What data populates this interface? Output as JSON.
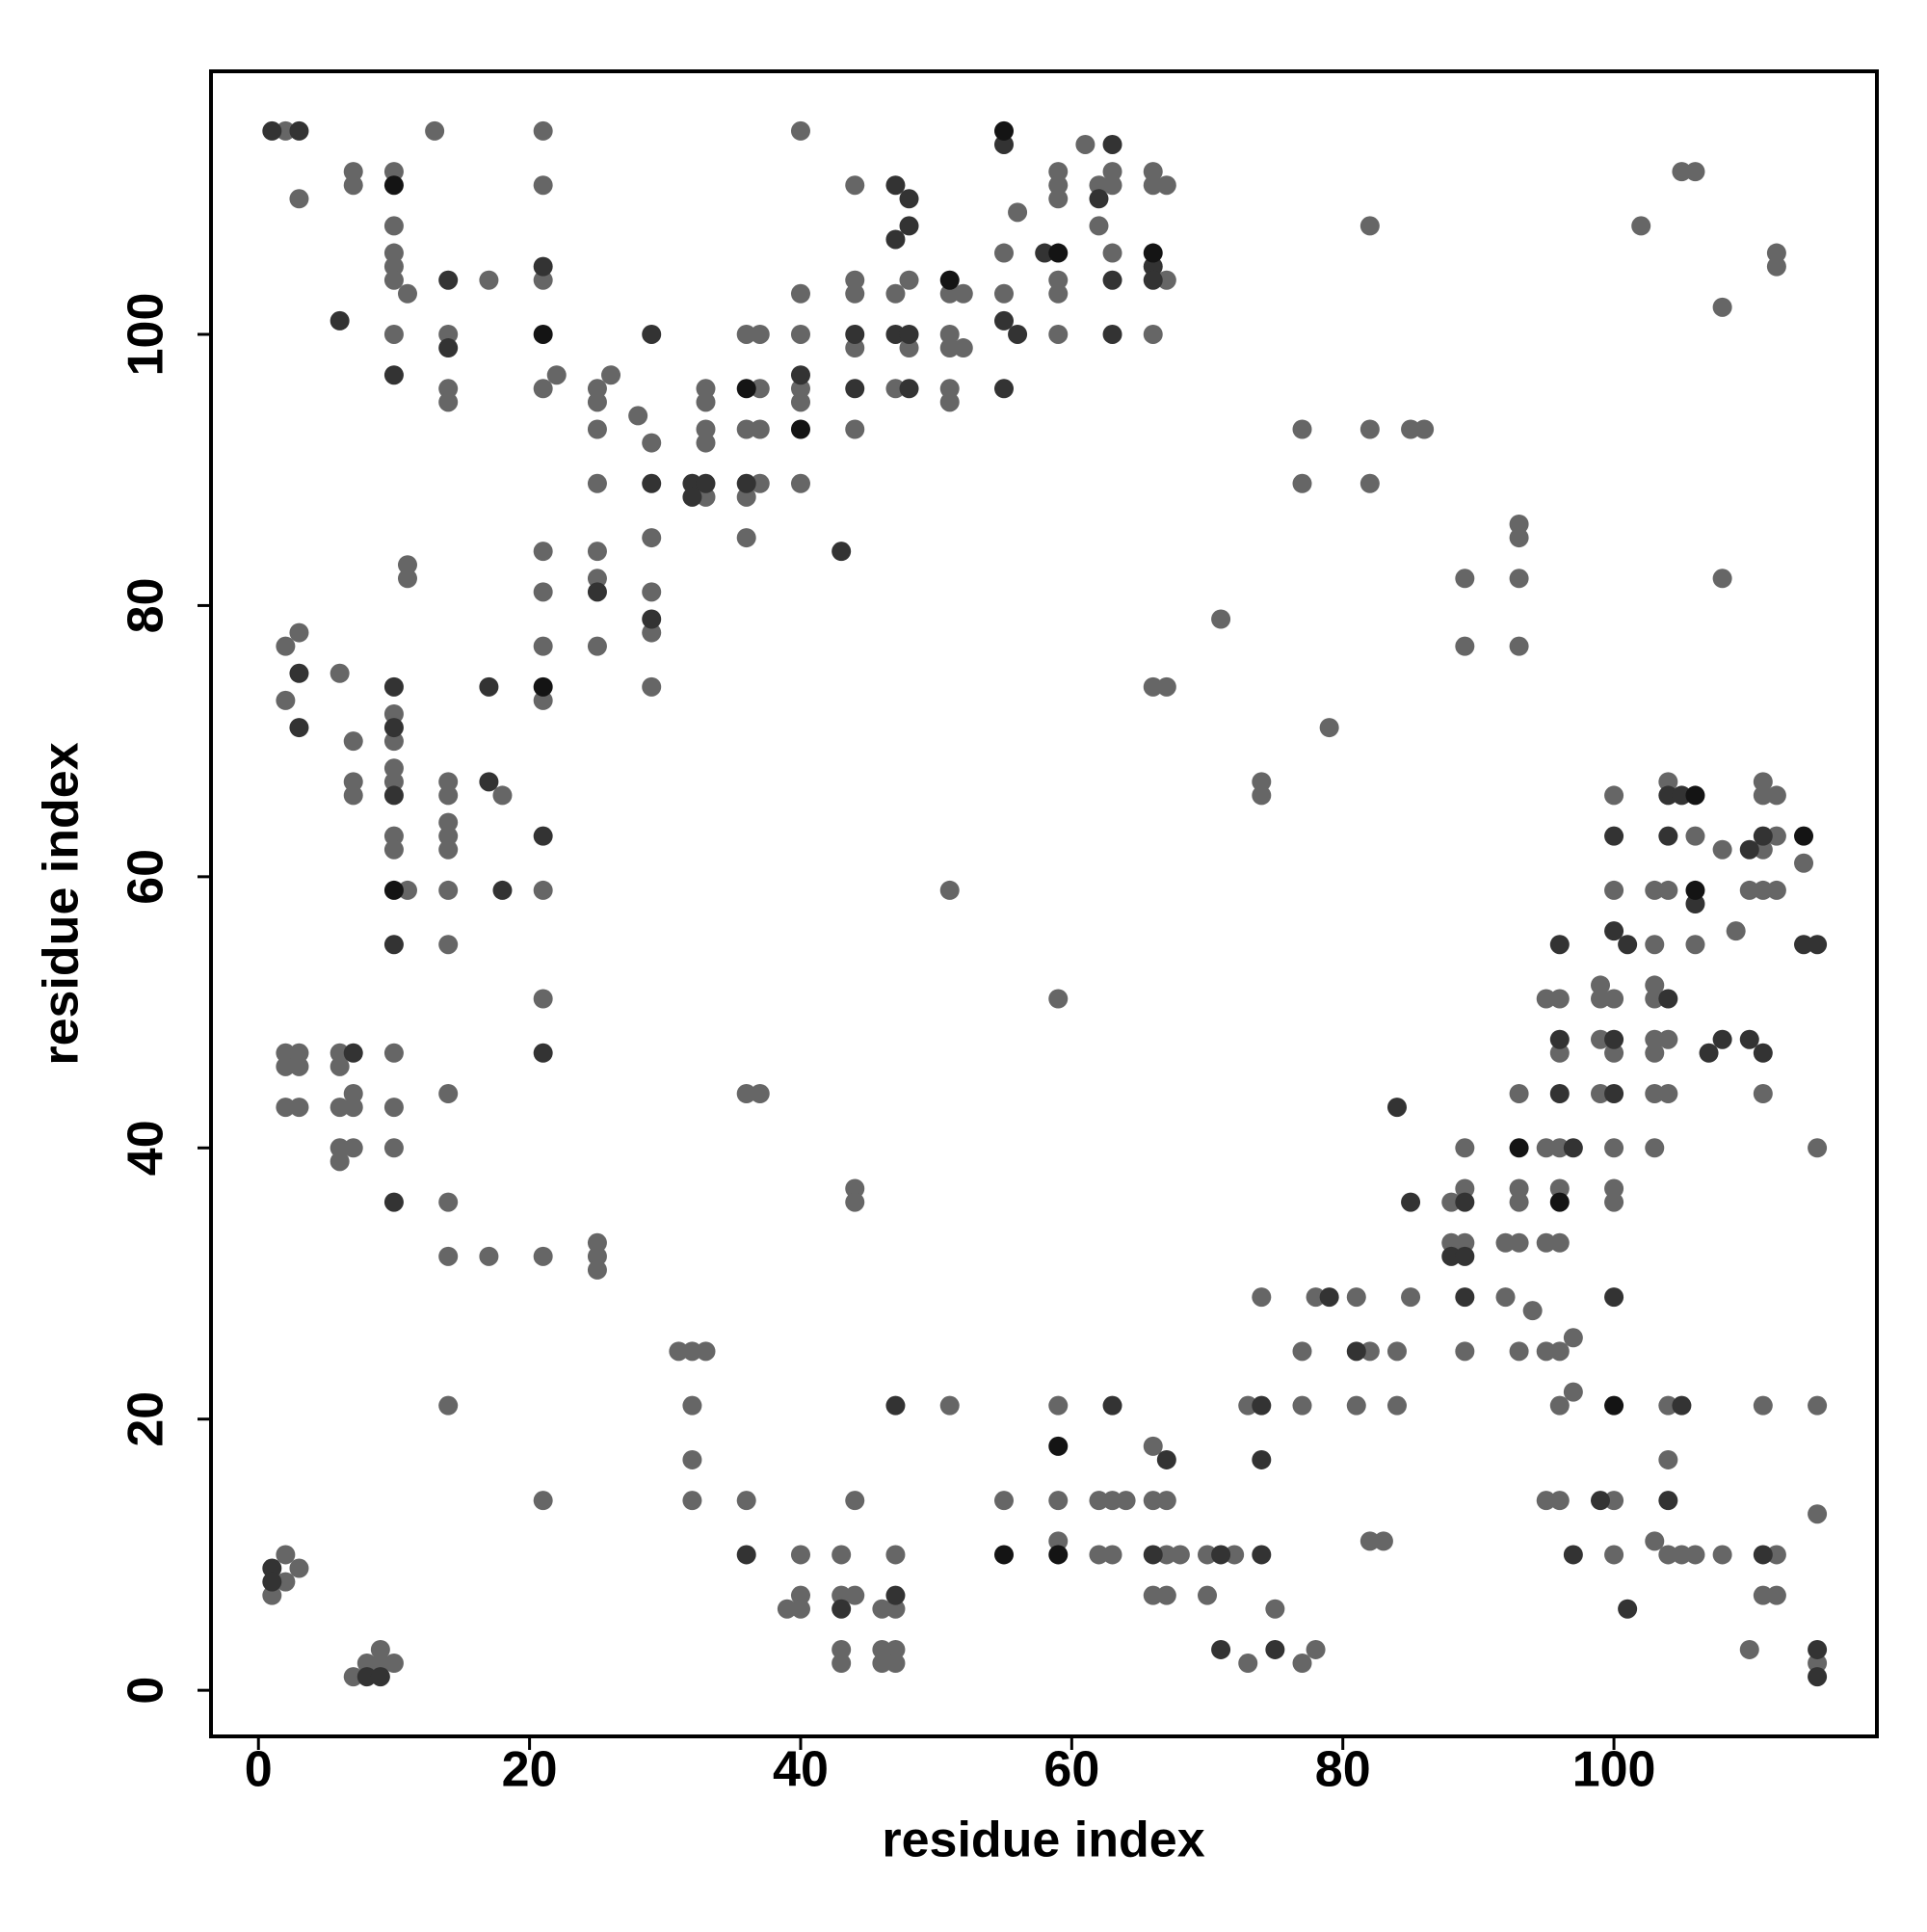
{
  "chart_data": {
    "type": "scatter",
    "xlabel": "residue index",
    "ylabel": "residue index",
    "xlim": [
      -3.5,
      119.4
    ],
    "ylim": [
      -3.4,
      119.4
    ],
    "xticks": [
      0,
      20,
      40,
      60,
      80,
      100
    ],
    "yticks": [
      0,
      20,
      40,
      60,
      80,
      100
    ],
    "series": [
      {
        "color": "#666666",
        "x": [
          1,
          2,
          2,
          2,
          2,
          2,
          2,
          2,
          2,
          3,
          3,
          3,
          3,
          3,
          3,
          6,
          6,
          6,
          6,
          6,
          6,
          7,
          7,
          7,
          7,
          7,
          7,
          7,
          7,
          7,
          8,
          9,
          9,
          10,
          10,
          10,
          10,
          10,
          10,
          10,
          10,
          10,
          10,
          10,
          10,
          10,
          10,
          10,
          10,
          11,
          11,
          11,
          11,
          13,
          14,
          14,
          14,
          14,
          14,
          14,
          14,
          14,
          14,
          14,
          14,
          14,
          14,
          14,
          17,
          17,
          18,
          21,
          21,
          21,
          21,
          21,
          21,
          21,
          21,
          21,
          21,
          21,
          21,
          22,
          25,
          25,
          25,
          25,
          25,
          25,
          25,
          25,
          25,
          25,
          26,
          28,
          29,
          29,
          29,
          29,
          29,
          31,
          32,
          32,
          32,
          32,
          33,
          33,
          33,
          33,
          33,
          33,
          36,
          36,
          36,
          36,
          36,
          36,
          37,
          37,
          37,
          37,
          37,
          39,
          40,
          40,
          40,
          40,
          40,
          40,
          40,
          40,
          40,
          43,
          43,
          43,
          43,
          44,
          44,
          44,
          44,
          44,
          44,
          44,
          44,
          44,
          46,
          46,
          46,
          47,
          47,
          47,
          47,
          47,
          47,
          48,
          48,
          51,
          51,
          51,
          51,
          51,
          51,
          51,
          52,
          52,
          55,
          55,
          55,
          56,
          59,
          59,
          59,
          59,
          59,
          59,
          59,
          59,
          59,
          59,
          61,
          62,
          62,
          62,
          62,
          63,
          63,
          63,
          63,
          63,
          64,
          66,
          66,
          66,
          66,
          66,
          66,
          66,
          67,
          67,
          67,
          67,
          67,
          67,
          68,
          70,
          70,
          71,
          72,
          73,
          73,
          74,
          74,
          74,
          75,
          77,
          77,
          77,
          77,
          77,
          78,
          78,
          79,
          81,
          81,
          82,
          82,
          82,
          82,
          82,
          83,
          84,
          84,
          85,
          85,
          86,
          88,
          88,
          89,
          89,
          89,
          89,
          89,
          89,
          92,
          92,
          93,
          93,
          93,
          93,
          93,
          93,
          93,
          93,
          93,
          94,
          95,
          95,
          95,
          95,
          95,
          96,
          96,
          96,
          96,
          96,
          96,
          96,
          96,
          97,
          97,
          99,
          99,
          99,
          99,
          100,
          100,
          100,
          100,
          100,
          100,
          100,
          100,
          100,
          102,
          103,
          103,
          103,
          103,
          103,
          103,
          103,
          103,
          103,
          104,
          104,
          104,
          104,
          104,
          104,
          104,
          105,
          105,
          106,
          106,
          106,
          106,
          108,
          108,
          108,
          108,
          109,
          110,
          110,
          111,
          111,
          111,
          111,
          111,
          111,
          111,
          112,
          112,
          112,
          112,
          112,
          112,
          112,
          114,
          115,
          115,
          115,
          115
        ],
        "y": [
          7,
          115,
          77,
          73,
          47,
          46,
          43,
          10,
          8,
          110,
          78,
          47,
          46,
          43,
          9,
          75,
          47,
          46,
          43,
          40,
          39,
          112,
          111,
          70,
          67,
          66,
          44,
          43,
          40,
          1,
          2,
          3,
          2,
          112,
          108,
          106,
          105,
          104,
          100,
          72,
          70,
          68,
          67,
          63,
          62,
          47,
          43,
          40,
          2,
          103,
          83,
          82,
          59,
          115,
          100,
          96,
          95,
          67,
          66,
          64,
          63,
          62,
          59,
          55,
          44,
          36,
          32,
          21,
          104,
          32,
          66,
          115,
          111,
          104,
          96,
          84,
          81,
          77,
          73,
          59,
          51,
          32,
          14,
          97,
          96,
          95,
          93,
          89,
          84,
          82,
          77,
          33,
          32,
          31,
          97,
          94,
          92,
          85,
          81,
          78,
          74,
          25,
          25,
          21,
          17,
          14,
          96,
          95,
          93,
          92,
          88,
          25,
          100,
          93,
          88,
          85,
          44,
          14,
          100,
          96,
          93,
          89,
          44,
          6,
          115,
          103,
          100,
          96,
          95,
          89,
          10,
          7,
          6,
          10,
          7,
          3,
          2,
          111,
          104,
          103,
          99,
          93,
          37,
          36,
          14,
          7,
          6,
          3,
          2,
          103,
          96,
          10,
          6,
          3,
          2,
          104,
          99,
          103,
          100,
          99,
          96,
          95,
          59,
          21,
          103,
          99,
          106,
          103,
          14,
          109,
          112,
          111,
          110,
          104,
          103,
          100,
          51,
          21,
          14,
          11,
          114,
          111,
          108,
          14,
          10,
          112,
          111,
          106,
          14,
          10,
          14,
          112,
          111,
          100,
          74,
          18,
          14,
          7,
          111,
          104,
          74,
          14,
          10,
          7,
          10,
          10,
          7,
          79,
          10,
          21,
          2,
          67,
          66,
          29,
          6,
          93,
          89,
          25,
          21,
          2,
          29,
          3,
          71,
          29,
          21,
          108,
          93,
          89,
          25,
          11,
          11,
          25,
          21,
          93,
          29,
          93,
          36,
          33,
          82,
          77,
          40,
          37,
          33,
          25,
          33,
          29,
          86,
          85,
          82,
          77,
          44,
          37,
          36,
          33,
          25,
          28,
          51,
          40,
          33,
          25,
          14,
          51,
          47,
          40,
          37,
          33,
          25,
          21,
          14,
          26,
          22,
          52,
          51,
          48,
          44,
          66,
          59,
          51,
          47,
          40,
          37,
          36,
          14,
          10,
          108,
          59,
          55,
          52,
          51,
          48,
          47,
          44,
          40,
          11,
          67,
          59,
          48,
          44,
          21,
          17,
          10,
          112,
          10,
          112,
          63,
          55,
          10,
          102,
          82,
          62,
          10,
          56,
          59,
          3,
          67,
          66,
          62,
          59,
          44,
          21,
          7,
          106,
          105,
          66,
          63,
          59,
          10,
          7,
          61,
          40,
          21,
          13,
          2
        ]
      },
      {
        "color": "#333333",
        "x": [
          1,
          1,
          1,
          3,
          3,
          3,
          6,
          7,
          8,
          9,
          10,
          10,
          10,
          10,
          10,
          10,
          14,
          14,
          17,
          17,
          18,
          21,
          21,
          21,
          25,
          29,
          29,
          29,
          32,
          32,
          33,
          36,
          36,
          40,
          43,
          43,
          44,
          44,
          47,
          47,
          47,
          47,
          47,
          48,
          48,
          48,
          48,
          55,
          55,
          55,
          56,
          58,
          62,
          63,
          63,
          63,
          63,
          66,
          66,
          66,
          67,
          71,
          71,
          74,
          74,
          74,
          75,
          79,
          81,
          84,
          85,
          88,
          89,
          89,
          89,
          96,
          96,
          96,
          97,
          97,
          99,
          100,
          100,
          100,
          100,
          100,
          101,
          101,
          104,
          104,
          104,
          104,
          105,
          105,
          106,
          107,
          108,
          110,
          110,
          111,
          111,
          111,
          114,
          115,
          115,
          115
        ],
        "y": [
          115,
          9,
          8,
          115,
          75,
          71,
          101,
          47,
          1,
          1,
          97,
          74,
          71,
          66,
          55,
          36,
          104,
          99,
          74,
          67,
          59,
          105,
          63,
          47,
          81,
          100,
          89,
          79,
          89,
          88,
          89,
          89,
          10,
          97,
          84,
          6,
          100,
          96,
          111,
          107,
          100,
          21,
          7,
          110,
          108,
          100,
          96,
          114,
          101,
          96,
          100,
          106,
          110,
          114,
          104,
          100,
          21,
          105,
          104,
          10,
          17,
          10,
          3,
          21,
          17,
          10,
          3,
          29,
          25,
          43,
          36,
          32,
          36,
          32,
          29,
          55,
          48,
          44,
          40,
          10,
          14,
          63,
          56,
          48,
          44,
          29,
          55,
          6,
          66,
          63,
          51,
          14,
          66,
          21,
          58,
          47,
          48,
          62,
          48,
          63,
          47,
          10,
          55,
          55,
          3,
          1
        ]
      },
      {
        "color": "#141414",
        "x": [
          10,
          10,
          21,
          21,
          36,
          40,
          51,
          55,
          55,
          59,
          59,
          59,
          66,
          93,
          96,
          100,
          106,
          106,
          114
        ],
        "y": [
          111,
          59,
          100,
          74,
          96,
          93,
          104,
          115,
          10,
          106,
          18,
          10,
          106,
          40,
          36,
          21,
          66,
          59,
          63
        ]
      }
    ]
  }
}
